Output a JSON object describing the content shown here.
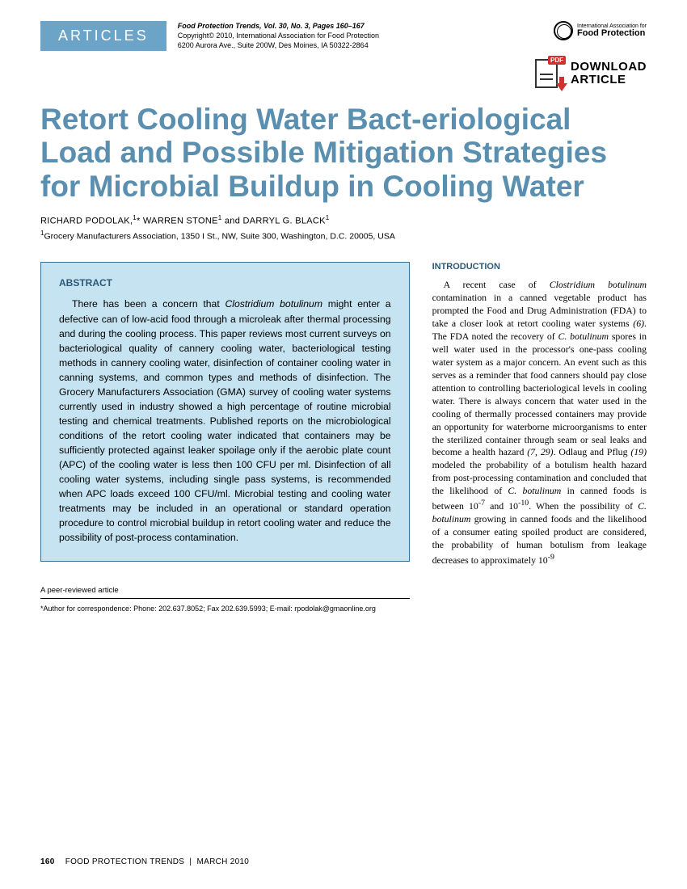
{
  "header": {
    "tab_label": "ARTICLES",
    "journal": "Food Protection Trends,",
    "vol_info": "Vol. 30, No. 3, Pages 160–167",
    "copyright": "Copyright© 2010, International Association for Food Protection",
    "address": "6200 Aurora Ave., Suite 200W, Des Moines, IA  50322-2864",
    "org_line1": "International Association for",
    "org_line2": "Food Protection"
  },
  "download": {
    "badge": "PDF",
    "line1": "DOWNLOAD",
    "line2": "ARTICLE"
  },
  "title": "Retort Cooling Water Bact-eriological Load and Possible Mitigation Strategies for Microbial Buildup in Cooling Water",
  "authors_html": "RICHARD PODOLAK,<sup>1</sup>* WARREN STONE<sup>1</sup> and DARRYL G. BLACK<sup>1</sup>",
  "affiliation_html": "<sup>1</sup>Grocery Manufacturers Association, 1350 I St., NW, Suite 300, Washington, D.C. 20005, USA",
  "abstract": {
    "heading": "ABSTRACT",
    "body_html": "There has been a concern that <em>Clostridium botulinum</em> might enter a defective can of low-acid food through a microleak after thermal processing and during the cooling process. This paper reviews most current surveys on bacteriological quality of cannery cooling water, bacteriological testing methods in cannery cooling water, disinfection of container cooling water in canning systems, and common types and methods of disinfection. The Grocery Manufacturers Association (GMA) survey of cooling water systems currently used in industry showed a high percentage of routine microbial testing and chemical treatments. Published reports on the microbiological conditions of the retort cooling water indicated that containers may be sufficiently protected against leaker spoilage only if the aerobic plate count (APC) of the cooling water is less then 100 CFU per ml. Disinfection of all cooling water systems, including single pass systems, is recommended when APC loads exceed 100 CFU/ml. Microbial testing and cooling water treatments may be included in an operational or standard operation procedure to control microbial buildup in retort cooling water and reduce the possibility of post-process contamination."
  },
  "peer_review": "A peer-reviewed article",
  "correspondence": "*Author for correspondence: Phone: 202.637.8052; Fax 202.639.5993; E-mail: rpodolak@gmaonline.org",
  "intro": {
    "heading": "INTRODUCTION",
    "body_html": "A recent case of <em>Clostridium botulinum</em> contamination in a canned vegetable product has prompted the Food and Drug Administration (FDA) to take a closer look at retort cooling water systems <em>(6)</em>. The FDA noted the recovery of <em>C. botulinum</em> spores in well water used in the processor's one-pass cooling water system as a major concern. An event such as this serves as a reminder that food canners should pay close attention to controlling bacteriological levels in cooling water. There is always concern that water used in the cooling of thermally processed containers may provide an opportunity for waterborne microorganisms to enter the sterilized container through seam or seal leaks and become a health hazard <em>(7, 29)</em>. Odlaug and Pflug <em>(19)</em> modeled the probability of a botulism health hazard from post-processing contamination and concluded that the likelihood of <em>C. botulinum</em> in canned foods is between 10<sup>-7</sup> and 10<sup>-10</sup>. When the possibility of <em>C. botulinum</em> growing in canned foods and the likelihood of a consumer eating spoiled product are considered, the probability of human botulism from leakage decreases to approximately 10<sup>-9</sup>"
  },
  "footer": {
    "page": "160",
    "journal": "FOOD PROTECTION TRENDS",
    "sep": "|",
    "date": "MARCH 2010"
  },
  "colors": {
    "primary_blue": "#5a8fb0",
    "heading_blue": "#2d5876",
    "tab_bg": "#6ba4c7",
    "abstract_bg": "#c5e3f0",
    "abstract_border": "#3a6d8f",
    "pdf_red": "#d32f2f"
  }
}
